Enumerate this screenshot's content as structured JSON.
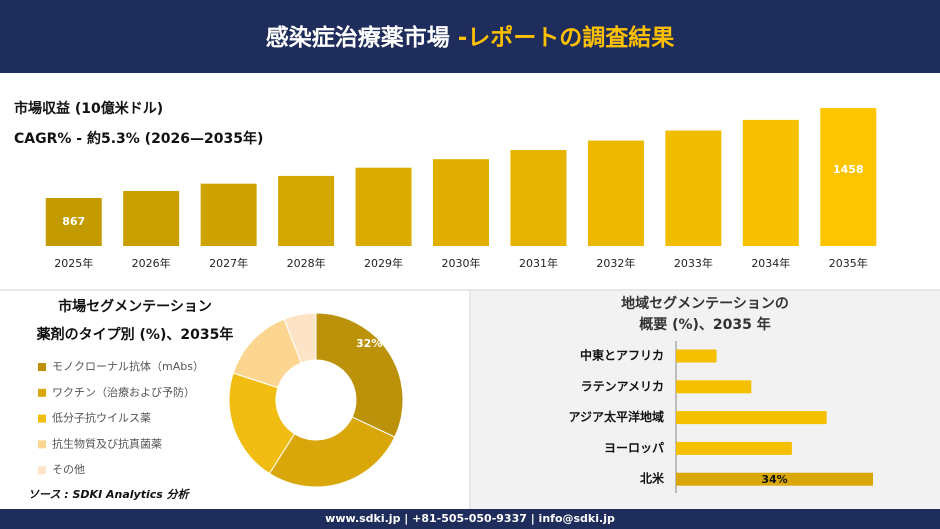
{
  "header": {
    "title": "感染症治療薬市場 ",
    "title_highlight": "-レポートの調査結果"
  },
  "chart_data": [
    {
      "type": "bar",
      "title": "市場収益 (10億米ドル)",
      "subtitle": "CAGR% - 約5.3% (2026—2035年)",
      "categories": [
        "2025年",
        "2026年",
        "2027年",
        "2028年",
        "2029年",
        "2030年",
        "2031年",
        "2032年",
        "2033年",
        "2034年",
        "2035年"
      ],
      "values": [
        867,
        913,
        961,
        1012,
        1066,
        1122,
        1182,
        1244,
        1310,
        1380,
        1458
      ],
      "value_labels": [
        "867",
        null,
        null,
        null,
        null,
        null,
        null,
        null,
        null,
        null,
        "1458"
      ],
      "colors": [
        "#c39b00",
        "#c9a000",
        "#cea300",
        "#d4a700",
        "#daab00",
        "#e0af00",
        "#e6b300",
        "#ecb800",
        "#f2bd00",
        "#f7c100",
        "#fcc500"
      ]
    },
    {
      "type": "pie",
      "title": "市場セグメンテーション",
      "subtitle": "薬剤のタイプ別 (%)、2035年",
      "categories": [
        "モノクローナル抗体（mAbs）",
        "ワクチン（治療および予防）",
        "低分子抗ウイルス薬",
        "抗生物質及び抗真菌薬",
        "その他"
      ],
      "values": [
        32,
        27,
        21,
        14,
        6
      ],
      "value_labels": [
        "32%",
        null,
        null,
        null,
        null
      ],
      "colors": [
        "#bb920a",
        "#d9a70a",
        "#f2bd12",
        "#fcd590",
        "#fde4c6"
      ]
    },
    {
      "type": "hbar",
      "title": "地域セグメンテーションの",
      "subtitle": "概要 (%)、2035 年",
      "categories": [
        "中東とアフリカ",
        "ラテンアメリカ",
        "アジア太平洋地域",
        "ヨーロッパ",
        "北米"
      ],
      "values": [
        7,
        13,
        26,
        20,
        34
      ],
      "value_labels": [
        null,
        null,
        null,
        null,
        "34%"
      ],
      "colors": [
        "#f5c000",
        "#f5c000",
        "#f5c000",
        "#f5c000",
        "#d9a70a"
      ]
    }
  ],
  "source": "ソース : SDKI Analytics 分析",
  "footer": "www.sdki.jp | +81-505-050-9337 | info@sdki.jp"
}
